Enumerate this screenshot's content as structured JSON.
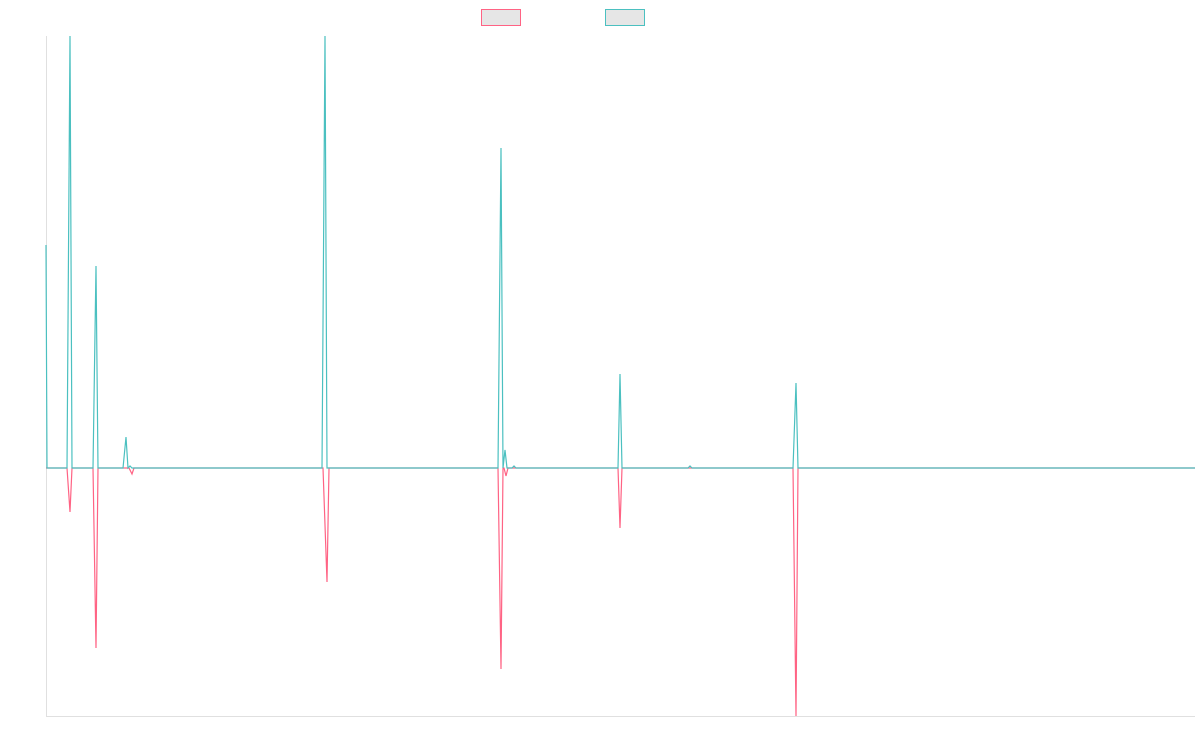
{
  "chart_data": {
    "type": "line",
    "xlim": [
      0,
      1149
    ],
    "ylim": [
      -248,
      432
    ],
    "series": [
      {
        "color": "#ff6384",
        "x": [
          0,
          21,
          24,
          26,
          47,
          50,
          52,
          83,
          86,
          88,
          277,
          281,
          283,
          452,
          455,
          457,
          458,
          460,
          462,
          572,
          574,
          576,
          747,
          750,
          752,
          1149
        ],
        "values": [
          0,
          0,
          -44,
          0,
          0,
          -180,
          0,
          0,
          -6,
          0,
          0,
          -114,
          0,
          0,
          -201,
          0,
          0,
          -8,
          0,
          0,
          -60,
          0,
          0,
          -248,
          0,
          0
        ]
      },
      {
        "color": "#4bc0c0",
        "x": [
          0,
          1,
          21,
          24,
          26,
          47,
          50,
          52,
          77,
          80,
          82,
          84,
          86,
          276,
          279,
          281,
          452,
          455,
          457,
          459,
          461,
          466,
          468,
          470,
          572,
          574,
          576,
          642,
          644,
          646,
          747,
          750,
          752,
          1149
        ],
        "values": [
          223,
          0,
          0,
          432,
          0,
          0,
          202,
          0,
          0,
          31,
          0,
          2,
          0,
          0,
          432,
          0,
          0,
          320,
          0,
          18,
          0,
          0,
          2,
          0,
          0,
          94,
          0,
          0,
          2,
          0,
          0,
          85,
          0,
          0
        ]
      }
    ]
  }
}
